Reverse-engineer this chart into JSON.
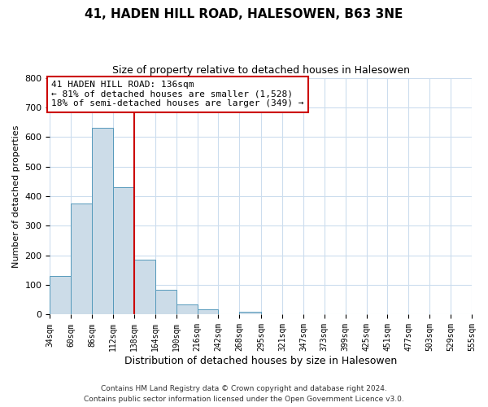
{
  "title": "41, HADEN HILL ROAD, HALESOWEN, B63 3NE",
  "subtitle": "Size of property relative to detached houses in Halesowen",
  "xlabel": "Distribution of detached houses by size in Halesowen",
  "ylabel": "Number of detached properties",
  "bar_values": [
    130,
    375,
    632,
    430,
    185,
    85,
    35,
    18,
    0,
    10,
    0,
    0,
    0,
    0,
    0,
    0,
    0,
    0,
    0,
    0
  ],
  "bin_edges": [
    34,
    60,
    86,
    112,
    138,
    164,
    190,
    216,
    242,
    268,
    295,
    321,
    347,
    373,
    399,
    425,
    451,
    477,
    503,
    529,
    555
  ],
  "tick_labels": [
    "34sqm",
    "60sqm",
    "86sqm",
    "112sqm",
    "138sqm",
    "164sqm",
    "190sqm",
    "216sqm",
    "242sqm",
    "268sqm",
    "295sqm",
    "321sqm",
    "347sqm",
    "373sqm",
    "399sqm",
    "425sqm",
    "451sqm",
    "477sqm",
    "503sqm",
    "529sqm",
    "555sqm"
  ],
  "bar_color": "#ccdce8",
  "bar_edgecolor": "#5599bb",
  "property_line_color": "#cc0000",
  "annotation_line1": "41 HADEN HILL ROAD: 136sqm",
  "annotation_line2": "← 81% of detached houses are smaller (1,528)",
  "annotation_line3": "18% of semi-detached houses are larger (349) →",
  "annotation_box_color": "#cc0000",
  "ylim": [
    0,
    800
  ],
  "yticks": [
    0,
    100,
    200,
    300,
    400,
    500,
    600,
    700,
    800
  ],
  "footer_line1": "Contains HM Land Registry data © Crown copyright and database right 2024.",
  "footer_line2": "Contains public sector information licensed under the Open Government Licence v3.0.",
  "bg_color": "#ffffff",
  "grid_color": "#ccddee",
  "title_fontsize": 11,
  "subtitle_fontsize": 9
}
